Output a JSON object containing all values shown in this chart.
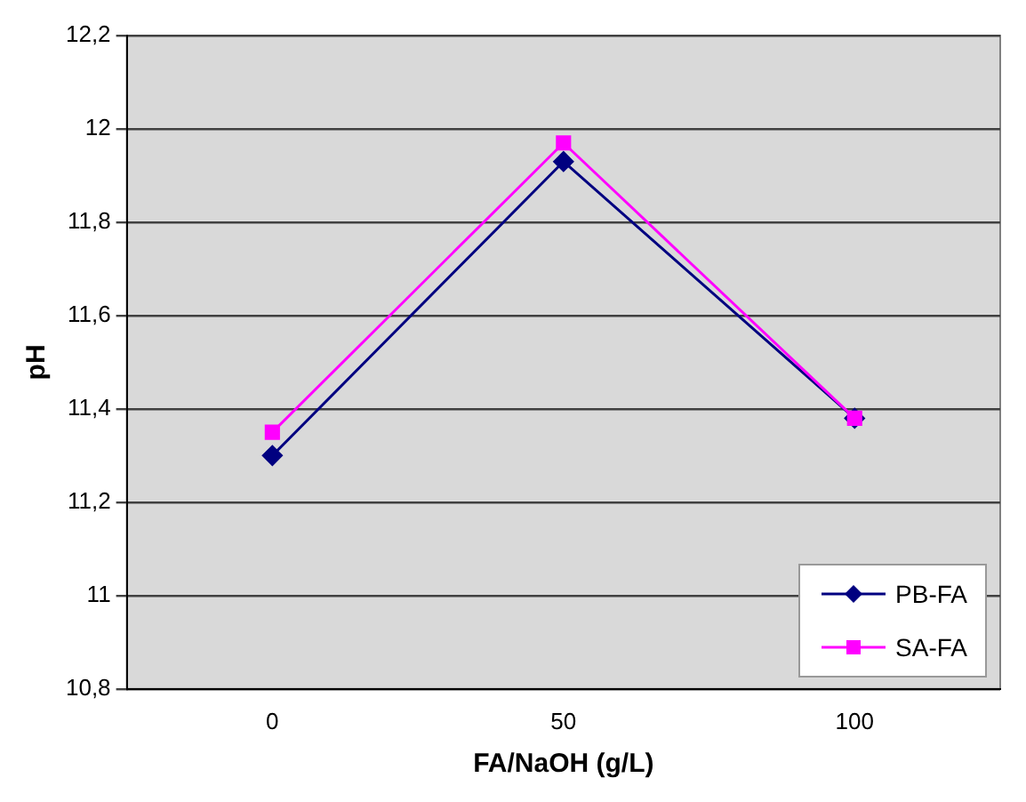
{
  "chart_data": {
    "type": "line",
    "xlabel": "FA/NaOH (g/L)",
    "ylabel": "pH",
    "categories": [
      "0",
      "50",
      "100"
    ],
    "series": [
      {
        "name": "PB-FA",
        "color": "#000080",
        "marker": "diamond",
        "values": [
          11.3,
          11.93,
          11.38
        ]
      },
      {
        "name": "SA-FA",
        "color": "#ff00ff",
        "marker": "square",
        "values": [
          11.35,
          11.97,
          11.38
        ]
      }
    ],
    "ylim": [
      10.8,
      12.2
    ],
    "yticks": [
      {
        "value": 10.8,
        "label": "10,8"
      },
      {
        "value": 11,
        "label": "11"
      },
      {
        "value": 11.2,
        "label": "11,2"
      },
      {
        "value": 11.4,
        "label": "11,4"
      },
      {
        "value": 11.6,
        "label": "11,6"
      },
      {
        "value": 11.8,
        "label": "11,8"
      },
      {
        "value": 12,
        "label": "12"
      },
      {
        "value": 12.2,
        "label": "12,2"
      }
    ],
    "grid": "y",
    "legend": "bottom right",
    "line_style": "solid"
  }
}
